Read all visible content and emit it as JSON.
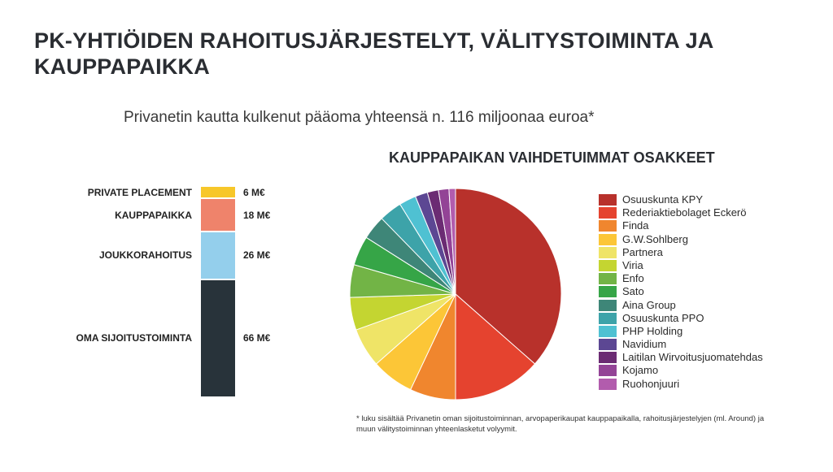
{
  "title": "PK-YHTIÖIDEN RAHOITUSJÄRJESTELYT, VÄLITYSTOIMINTA JA KAUPPAPAIKKA",
  "subtitle": "Privanetin kautta kulkenut pääoma yhteensä n. 116 miljoonaa euroa*",
  "footnote": "* luku sisältää Privanetin oman sijoitustoiminnan, arvopaperikaupat kauppapaikalla, rahoitusjärjestelyjen (ml. Around) ja muun välitystoiminnan yhteenlasketut volyymit.",
  "chart_data": [
    {
      "type": "bar",
      "orientation": "stacked-vertical",
      "categories": [
        "PRIVATE PLACEMENT",
        "KAUPPAPAIKKA",
        "JOUKKORAHOITUS",
        "OMA SIJOITUSTOIMINTA"
      ],
      "values": [
        6,
        18,
        26,
        66
      ],
      "value_labels": [
        "6 M€",
        "18 M€",
        "26 M€",
        "66 M€"
      ],
      "colors": [
        "#f7c72a",
        "#ef836b",
        "#94cfec",
        "#28333a"
      ],
      "unit": "M€"
    },
    {
      "type": "pie",
      "title": "KAUPPAPAIKAN VAIHDETUIMMAT OSAKKEET",
      "legend_position": "right",
      "labels": [
        "Osuuskunta KPY",
        "Rederiaktiebolaget Eckerö",
        "Finda",
        "G.W.Sohlberg",
        "Partnera",
        "Viria",
        "Enfo",
        "Sato",
        "Aina Group",
        "Osuuskunta PPO",
        "PHP Holding",
        "Navidium",
        "Laitilan Wirvoitusjuomatehdas",
        "Kojamo",
        "Ruohonjuuri"
      ],
      "values": [
        36.5,
        13.5,
        7.0,
        6.5,
        6.0,
        5.0,
        5.0,
        4.5,
        3.7,
        3.5,
        2.6,
        1.9,
        1.7,
        1.6,
        1.0
      ],
      "colors": [
        "#b8312b",
        "#e5432f",
        "#f0862e",
        "#fcc637",
        "#efe467",
        "#c4d531",
        "#72b446",
        "#36a547",
        "#3e8678",
        "#3da3a9",
        "#4fc1d2",
        "#5c4793",
        "#6b2b73",
        "#934396",
        "#b25cad"
      ]
    }
  ]
}
